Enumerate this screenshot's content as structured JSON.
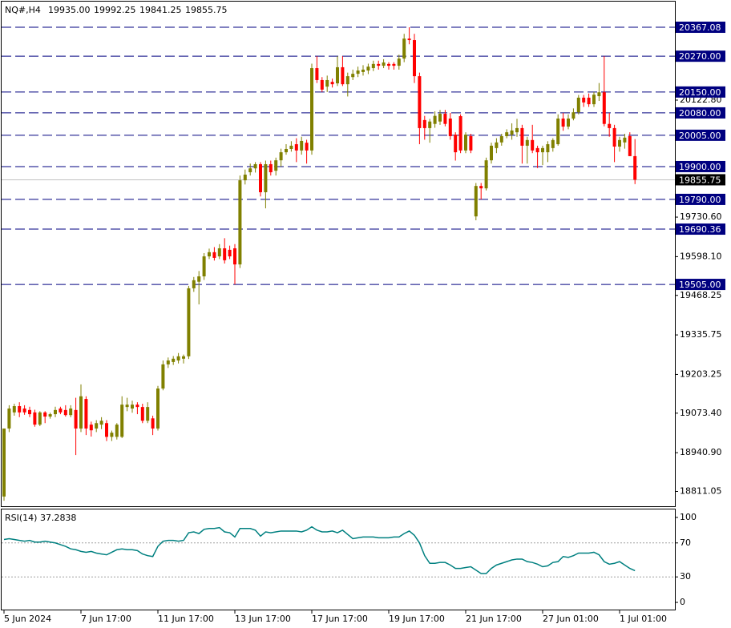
{
  "chart_data": {
    "type": "candlestick",
    "title": "NQ#,H4",
    "ohlc_labels": [
      "19935.00",
      "19992.25",
      "19841.25",
      "19855.75"
    ],
    "up_color": "#808000",
    "down_color": "#ff0000",
    "categories": [
      "5 Jun 2024",
      null,
      null,
      null,
      null,
      null,
      null,
      null,
      null,
      null,
      null,
      null,
      null,
      null,
      null,
      "7 Jun 17:00",
      null,
      null,
      null,
      null,
      null,
      null,
      null,
      null,
      null,
      null,
      null,
      null,
      null,
      null,
      "11 Jun 17:00",
      null,
      null,
      null,
      null,
      null,
      null,
      null,
      null,
      null,
      null,
      null,
      null,
      null,
      null,
      "13 Jun 17:00",
      null,
      null,
      null,
      null,
      null,
      null,
      null,
      null,
      null,
      null,
      null,
      null,
      null,
      null,
      "17 Jun 17:00",
      null,
      null,
      null,
      null,
      null,
      null,
      null,
      null,
      null,
      null,
      null,
      null,
      null,
      null,
      "19 Jun 17:00",
      null,
      null,
      null,
      null,
      null,
      null,
      null,
      null,
      null,
      null,
      null,
      null,
      null,
      null,
      "21 Jun 17:00",
      null,
      null,
      null,
      null,
      null,
      null,
      null,
      null,
      null,
      null,
      null,
      null,
      null,
      null,
      "27 Jun 01:00",
      null,
      null,
      null,
      null,
      null,
      null,
      null,
      null,
      null,
      null,
      null,
      null,
      null,
      null,
      "1 Jul 01:00",
      null,
      null,
      null
    ],
    "open": [
      18794,
      19022,
      19076,
      19097,
      19089,
      19084,
      19076,
      19035,
      19076,
      19062,
      19070,
      19089,
      19084,
      19067,
      19084,
      19022,
      19121,
      19035,
      19022,
      19035,
      19040,
      18994,
      18994,
      18994,
      19094,
      19089,
      19102,
      19094,
      19048,
      19056,
      19022,
      19156,
      19237,
      19245,
      19250,
      19256,
      19264,
      19492,
      19514,
      19532,
      19599,
      19613,
      19599,
      19626,
      19621,
      19626,
      19572,
      19854,
      19881,
      19894,
      19908,
      19814,
      19908,
      19886,
      19921,
      19948,
      19959,
      19975,
      19954,
      19980,
      19954,
      20230,
      20190,
      20168,
      20184,
      20179,
      20233,
      20176,
      20200,
      20211,
      20217,
      20222,
      20230,
      20244,
      20238,
      20244,
      20244,
      20238,
      20262,
      20329,
      20324,
      20203,
      20056,
      20029,
      20043,
      20051,
      20077,
      20061,
      20007,
      20069,
      19954,
      20002,
      19733,
      19835,
      19827,
      19921,
      19962,
      19981,
      20002,
      20007,
      20015,
      20029,
      19970,
      19989,
      19962,
      19948,
      19948,
      19962,
      19975,
      20061,
      20034,
      20061,
      20082,
      20131,
      20131,
      20109,
      20136,
      20149,
      20043,
      20029,
      19967,
      19981,
      20002,
      19935
    ],
    "high": [
      19022,
      19100,
      19105,
      19110,
      19100,
      19095,
      19085,
      19080,
      19080,
      19075,
      19095,
      19095,
      19100,
      19100,
      19125,
      19170,
      19130,
      19045,
      19050,
      19060,
      19050,
      19015,
      19040,
      19130,
      19125,
      19115,
      19110,
      19105,
      19110,
      19065,
      19165,
      19250,
      19260,
      19265,
      19275,
      19270,
      19500,
      19530,
      19550,
      19610,
      19625,
      19630,
      19640,
      19660,
      19635,
      19640,
      19870,
      19890,
      19910,
      19915,
      19915,
      19920,
      19920,
      19930,
      19960,
      19975,
      19985,
      19995,
      20000,
      19990,
      20245,
      20270,
      20200,
      20205,
      20195,
      20270,
      20270,
      20215,
      20225,
      20235,
      20240,
      20245,
      20255,
      20255,
      20260,
      20250,
      20250,
      20275,
      20345,
      20367,
      20345,
      20215,
      20070,
      20060,
      20085,
      20090,
      20090,
      20080,
      20015,
      20075,
      20015,
      20010,
      19845,
      19845,
      19930,
      19980,
      19995,
      20010,
      20025,
      20045,
      20060,
      20040,
      20000,
      20040,
      19970,
      19970,
      19985,
      19995,
      20075,
      20080,
      20075,
      20095,
      20140,
      20140,
      20145,
      20150,
      20180,
      20270,
      20080,
      20040,
      20000,
      20010,
      20015,
      19992.25
    ],
    "low": [
      18780,
      19010,
      19065,
      19060,
      19068,
      19060,
      19028,
      19030,
      19040,
      19055,
      19060,
      19070,
      19062,
      19060,
      18933,
      19010,
      19000,
      18995,
      19010,
      19020,
      18980,
      18980,
      18985,
      18990,
      19080,
      19075,
      19070,
      19040,
      19040,
      19000,
      19015,
      19150,
      19225,
      19235,
      19240,
      19240,
      19255,
      19480,
      19438,
      19520,
      19590,
      19585,
      19590,
      19575,
      19590,
      19505,
      19560,
      19840,
      19870,
      19880,
      19800,
      19760,
      19870,
      19870,
      19900,
      19940,
      19950,
      19915,
      19940,
      19910,
      19940,
      20180,
      20150,
      20150,
      20165,
      20170,
      20170,
      20135,
      20190,
      20200,
      20205,
      20210,
      20220,
      20225,
      20230,
      20225,
      20225,
      20225,
      20250,
      20310,
      20180,
      19975,
      19990,
      19980,
      20030,
      20040,
      20035,
      19990,
      19920,
      19945,
      19945,
      19945,
      19720,
      19790,
      19820,
      19910,
      19945,
      19970,
      19995,
      19990,
      20000,
      19910,
      19910,
      19945,
      19895,
      19905,
      19915,
      19950,
      19970,
      20020,
      20025,
      20055,
      20075,
      20100,
      20100,
      20100,
      20120,
      20035,
      20000,
      19915,
      19950,
      19960,
      19935,
      19841.25
    ],
    "close": [
      19022,
      19089,
      19097,
      19076,
      19076,
      19070,
      19035,
      19076,
      19062,
      19070,
      19084,
      19076,
      19067,
      19089,
      19022,
      19130,
      19022,
      19016,
      19040,
      19048,
      18994,
      19008,
      19035,
      19102,
      19102,
      19102,
      19094,
      19048,
      19094,
      19022,
      19156,
      19237,
      19250,
      19256,
      19264,
      19264,
      19492,
      19519,
      19532,
      19599,
      19613,
      19594,
      19626,
      19586,
      19599,
      19572,
      19854,
      19873,
      19894,
      19908,
      19814,
      19908,
      19881,
      19921,
      19948,
      19959,
      19970,
      19954,
      19986,
      19954,
      20230,
      20190,
      20158,
      20190,
      20176,
      20233,
      20176,
      20203,
      20211,
      20222,
      20225,
      20235,
      20244,
      20238,
      20249,
      20238,
      20238,
      20262,
      20329,
      20324,
      20203,
      20029,
      20029,
      20051,
      20070,
      20077,
      20043,
      20002,
      19948,
      19954,
      20007,
      19954,
      19835,
      19827,
      19921,
      19970,
      19981,
      20002,
      20015,
      20021,
      20029,
      19970,
      19989,
      19954,
      19948,
      19962,
      19975,
      19989,
      20061,
      20034,
      20061,
      20082,
      20131,
      20115,
      20109,
      20141,
      20149,
      20043,
      20029,
      19967,
      19989,
      19997,
      19935,
      19855.75
    ],
    "ylim": [
      18761.4,
      20458.4
    ],
    "yticks": [
      {
        "value": 18811.05,
        "label": "18811.05"
      },
      {
        "value": 18940.9,
        "label": "18940.90"
      },
      {
        "value": 19073.4,
        "label": "19073.40"
      },
      {
        "value": 19203.25,
        "label": "19203.25"
      },
      {
        "value": 19335.75,
        "label": "19335.75"
      },
      {
        "value": 19468.25,
        "label": "19468.25"
      },
      {
        "value": 19598.1,
        "label": "19598.10"
      },
      {
        "value": 19730.6,
        "label": "19730.60"
      },
      {
        "value": 20122.8,
        "label": "20122.80"
      }
    ],
    "levels": [
      {
        "value": 20367.08,
        "label": "20367.08"
      },
      {
        "value": 20270,
        "label": "20270.00"
      },
      {
        "value": 20150,
        "label": "20150.00"
      },
      {
        "value": 20080,
        "label": "20080.00"
      },
      {
        "value": 20005,
        "label": "20005.00"
      },
      {
        "value": 19900,
        "label": "19900.00"
      },
      {
        "value": 19790,
        "label": "19790.00"
      },
      {
        "value": 19690.36,
        "label": "19690.36"
      },
      {
        "value": 19505,
        "label": "19505.00"
      }
    ],
    "level_color": "#000080",
    "last_price": {
      "value": 19855.75,
      "label": "19855.75"
    },
    "rsi": {
      "label": "RSI(14) 37.2838",
      "color": "#008080",
      "values": [
        74,
        75,
        74,
        73,
        72,
        73,
        71,
        71,
        72,
        71,
        70,
        68,
        66,
        63,
        62,
        60,
        59,
        60,
        58,
        57,
        56,
        59,
        62,
        63,
        62,
        62,
        61,
        57,
        55,
        54,
        66,
        72,
        73,
        73,
        72,
        73,
        82,
        83,
        81,
        86,
        87,
        87,
        88,
        83,
        82,
        77,
        87,
        87,
        87,
        85,
        78,
        83,
        82,
        83,
        84,
        84,
        84,
        84,
        83,
        85,
        89,
        85,
        83,
        83,
        84,
        82,
        85,
        80,
        75,
        76,
        77,
        77,
        77,
        76,
        76,
        76,
        77,
        77,
        81,
        84,
        79,
        70,
        55,
        46,
        46,
        47,
        47,
        44,
        40,
        40,
        41,
        42,
        38,
        34,
        34,
        40,
        44,
        46,
        48,
        50,
        51,
        51,
        48,
        47,
        45,
        42,
        43,
        47,
        48,
        54,
        53,
        55,
        58,
        58,
        58,
        59,
        56,
        48,
        45,
        46,
        48,
        44,
        40,
        37.2838
      ],
      "ylim": [
        -9.4,
        109.4
      ],
      "yticks": [
        0,
        30,
        70,
        100
      ],
      "levels": [
        30,
        70
      ]
    }
  }
}
